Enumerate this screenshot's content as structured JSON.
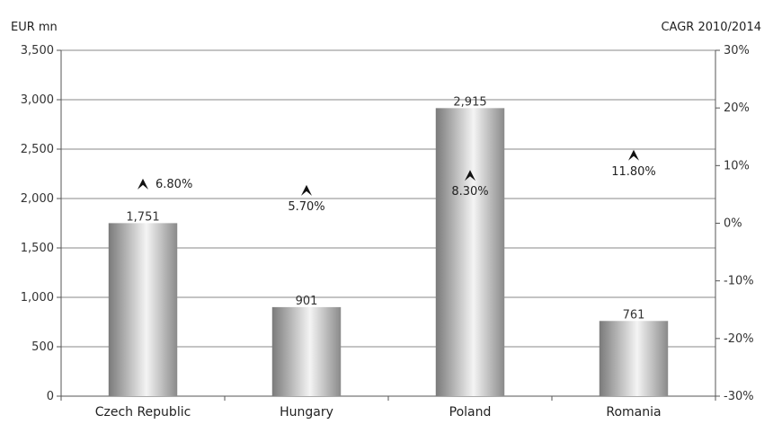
{
  "chart_data": {
    "type": "bar",
    "categories": [
      "Czech Republic",
      "Hungary",
      "Poland",
      "Romania"
    ],
    "values": [
      1751,
      901,
      2915,
      761
    ],
    "value_labels": [
      "1,751",
      "901",
      "2,915",
      "761"
    ],
    "ylabel": "EUR mn",
    "ylim": [
      0,
      3500
    ],
    "yticks": [
      0,
      500,
      1000,
      1500,
      2000,
      2500,
      3000,
      3500
    ],
    "ytick_labels": [
      "0",
      "500",
      "1,000",
      "1,500",
      "2,000",
      "2,500",
      "3,000",
      "3,500"
    ],
    "y2label": "CAGR 2010/2014",
    "y2lim": [
      -30,
      30
    ],
    "y2ticks": [
      -30,
      -20,
      -10,
      0,
      10,
      20,
      30
    ],
    "y2tick_labels": [
      "-30%",
      "-20%",
      "-10%",
      "0%",
      "10%",
      "20%",
      "30%"
    ],
    "cagr_values": [
      6.8,
      5.7,
      8.3,
      11.8
    ],
    "cagr_labels": [
      "6.80%",
      "5.70%",
      "8.30%",
      "11.80%"
    ],
    "grid": true,
    "colors": {
      "bar_dark": "#7a7a7a",
      "bar_light": "#f2f2f2",
      "grid": "#888888",
      "axis": "#555555",
      "marker": "#111111"
    }
  }
}
